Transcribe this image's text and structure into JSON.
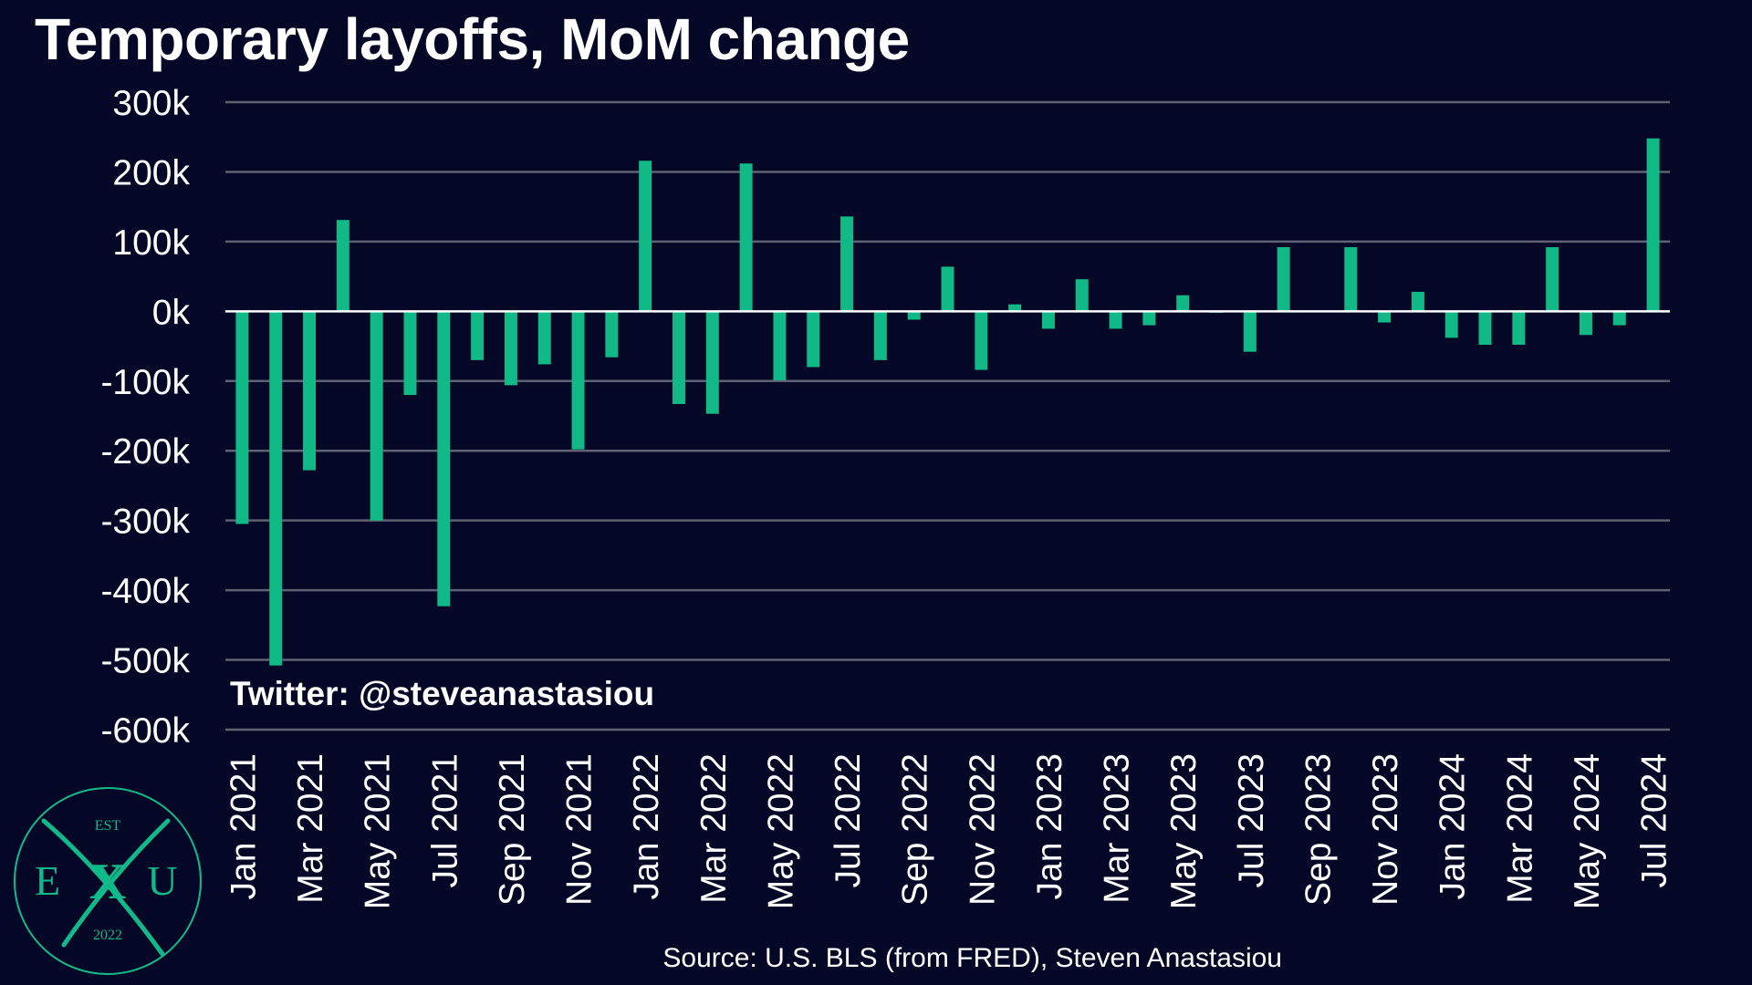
{
  "title": "Temporary layoffs, MoM change",
  "watermark": "Twitter: @steveanastasiou",
  "source": "Source: U.S. BLS (from FRED), Steven Anastasiou",
  "logo": {
    "top_text": "EST",
    "left_letter": "E",
    "middle_letter": "X",
    "right_letter": "U",
    "year": "2022"
  },
  "colors": {
    "background": "#040725",
    "bar": "#10b985",
    "grid": "#5f6174",
    "zero_line": "#ffffff",
    "text": "#ffffff",
    "logo": "#11b98a"
  },
  "chart_data": {
    "type": "bar",
    "title": "Temporary layoffs, MoM change",
    "ylim": [
      -600000,
      300000
    ],
    "yticks": [
      300000,
      200000,
      100000,
      0,
      -100000,
      -200000,
      -300000,
      -400000,
      -500000,
      -600000
    ],
    "ytick_labels": [
      "300k",
      "200k",
      "100k",
      "0k",
      "-100k",
      "-200k",
      "-300k",
      "-400k",
      "-500k",
      "-600k"
    ],
    "xtick_labels": [
      "Jan 2021",
      "Mar 2021",
      "May 2021",
      "Jul 2021",
      "Sep 2021",
      "Nov 2021",
      "Jan 2022",
      "Mar 2022",
      "May 2022",
      "Jul 2022",
      "Sep 2022",
      "Nov 2022",
      "Jan 2023",
      "Mar 2023",
      "May 2023",
      "Jul 2023",
      "Sep 2023",
      "Nov 2023",
      "Jan 2024",
      "Mar 2024",
      "May 2024",
      "Jul 2024"
    ],
    "grid": true,
    "categories": [
      "Jan 2021",
      "Feb 2021",
      "Mar 2021",
      "Apr 2021",
      "May 2021",
      "Jun 2021",
      "Jul 2021",
      "Aug 2021",
      "Sep 2021",
      "Oct 2021",
      "Nov 2021",
      "Dec 2021",
      "Jan 2022",
      "Feb 2022",
      "Mar 2022",
      "Apr 2022",
      "May 2022",
      "Jun 2022",
      "Jul 2022",
      "Aug 2022",
      "Sep 2022",
      "Oct 2022",
      "Nov 2022",
      "Dec 2022",
      "Jan 2023",
      "Feb 2023",
      "Mar 2023",
      "Apr 2023",
      "May 2023",
      "Jun 2023",
      "Jul 2023",
      "Aug 2023",
      "Sep 2023",
      "Oct 2023",
      "Nov 2023",
      "Dec 2023",
      "Jan 2024",
      "Feb 2024",
      "Mar 2024",
      "Apr 2024",
      "May 2024",
      "Jun 2024",
      "Jul 2024"
    ],
    "values": [
      -305000,
      -508000,
      -228000,
      131000,
      -300000,
      -120000,
      -423000,
      -70000,
      -106000,
      -76000,
      -198000,
      -66000,
      216000,
      -133000,
      -147000,
      212000,
      -99000,
      -80000,
      136000,
      -70000,
      -12000,
      64000,
      -84000,
      10000,
      -25000,
      46000,
      -25000,
      -20000,
      23000,
      -2000,
      -58000,
      92000,
      0,
      92000,
      -16000,
      28000,
      -38000,
      -48000,
      -48000,
      92000,
      -34000,
      -20000,
      248000
    ]
  }
}
